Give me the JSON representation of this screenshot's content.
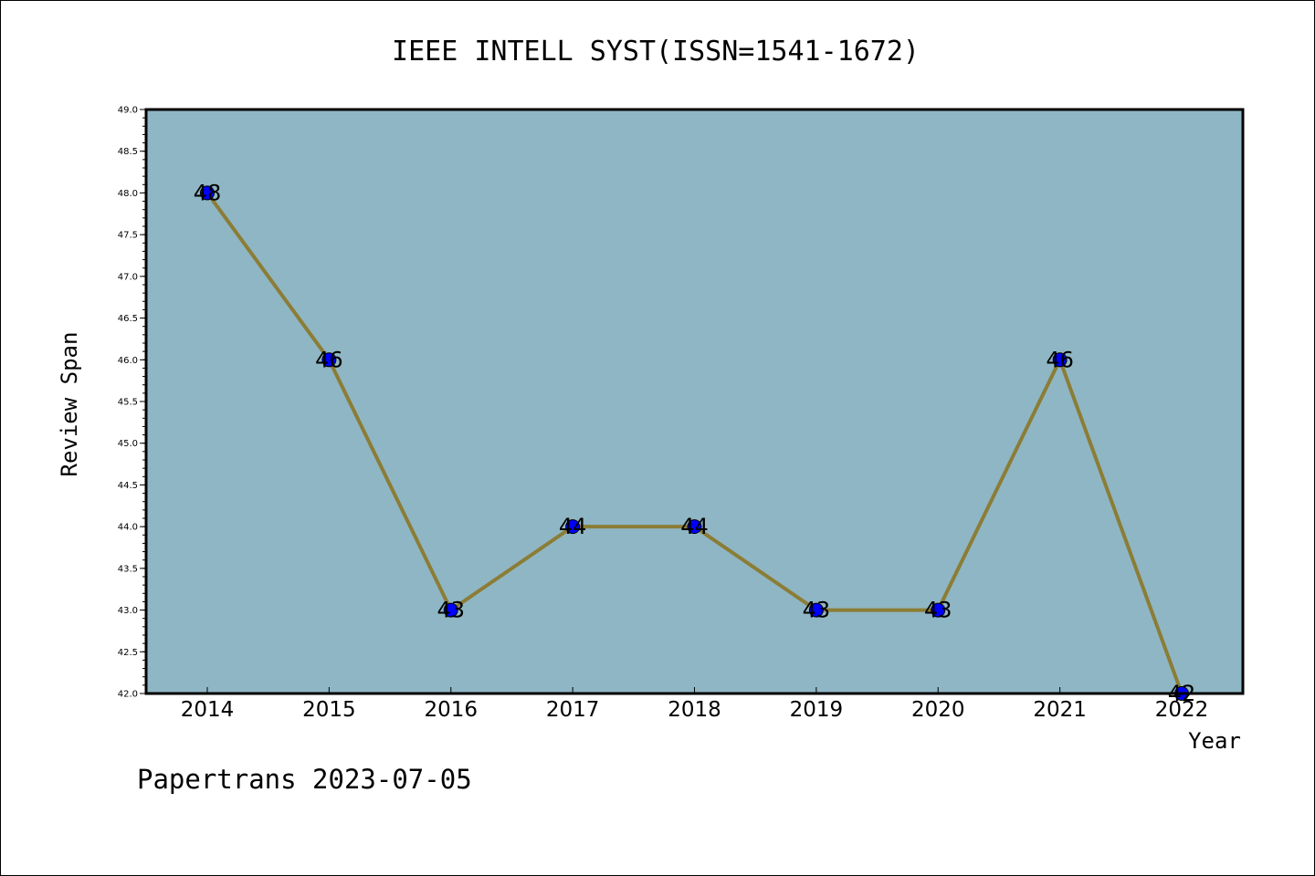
{
  "chart_data": {
    "type": "line",
    "title": "IEEE INTELL SYST(ISSN=1541-1672)",
    "xlabel": "Year",
    "ylabel": "Review Span",
    "categories": [
      "2014",
      "2015",
      "2016",
      "2017",
      "2018",
      "2019",
      "2020",
      "2021",
      "2022"
    ],
    "values": [
      48,
      46,
      43,
      44,
      44,
      43,
      43,
      46,
      42
    ],
    "data_labels": [
      "48",
      "46",
      "43",
      "44",
      "44",
      "43",
      "43",
      "46",
      "42"
    ],
    "ylim": [
      42.0,
      49.0
    ],
    "yticks": [
      "42.0",
      "42.5",
      "43.0",
      "43.5",
      "44.0",
      "44.5",
      "45.0",
      "45.5",
      "46.0",
      "46.5",
      "47.0",
      "47.5",
      "48.0",
      "48.5",
      "49.0"
    ],
    "grid": false,
    "colors": {
      "plot_background": "#8fb6c4",
      "line": "#8b7d36",
      "marker": "#0000ff"
    }
  },
  "footer": "Papertrans 2023-07-05"
}
